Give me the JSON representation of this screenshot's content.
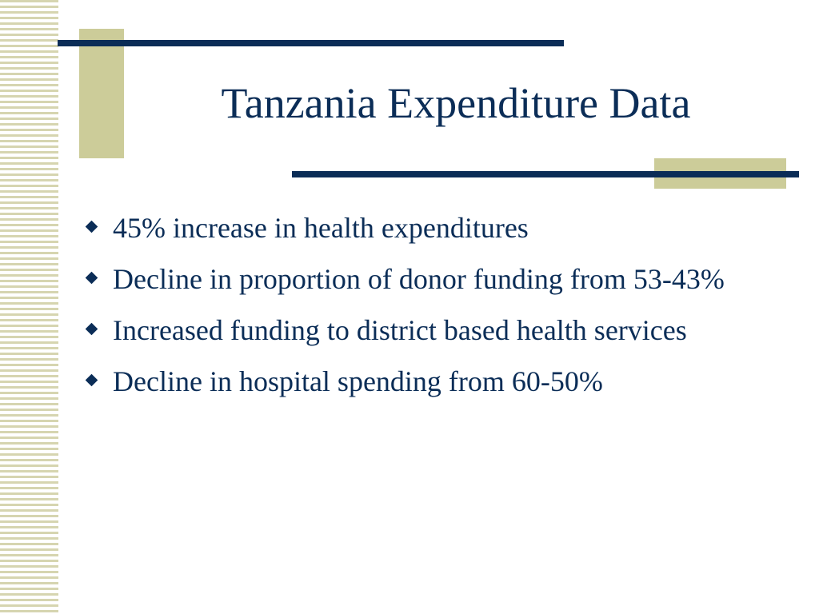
{
  "slide": {
    "title": "Tanzania Expenditure Data",
    "bullets": [
      {
        "text": "45% increase in health expenditures"
      },
      {
        "text": "Decline in proportion of donor funding from 53-43%"
      },
      {
        "text": "Increased funding to district based health services"
      },
      {
        "text": "Decline in hospital spending from 60-50%"
      }
    ]
  },
  "colors": {
    "navy": "#0b2d57",
    "olive": "#cccc99",
    "stripe": "#d6d5b0",
    "background": "#ffffff"
  },
  "icons": {
    "bullet": "diamond-icon"
  }
}
